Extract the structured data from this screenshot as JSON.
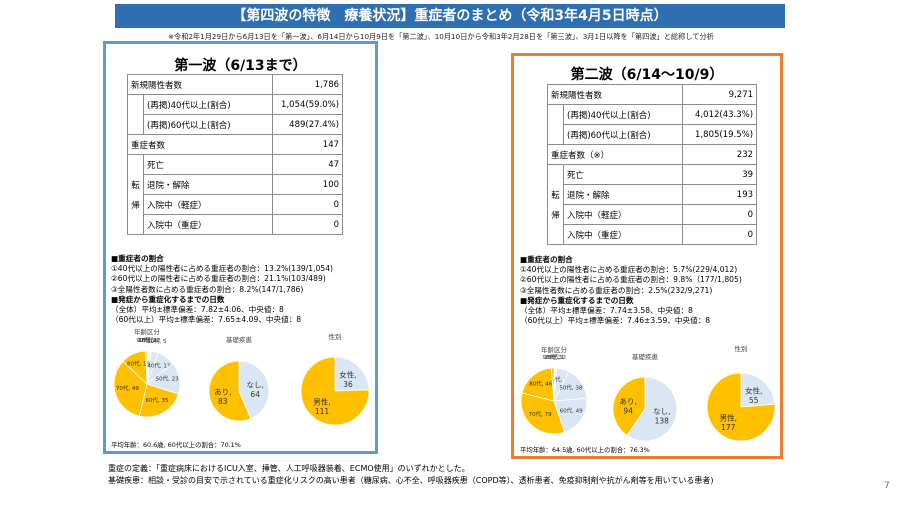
{
  "header": {
    "title": "【第四波の特徴　療養状況】重症者のまとめ（令和3年4月5日時点）",
    "note": "※令和2年1月29日から6月13日を「第一波」、6月14日から10月9日を「第二波」、10月10日から令和3年2月28日を「第三波」、3月1日以降を「第四波」と総称して分析"
  },
  "colors": {
    "banner": "#2e6eb3",
    "wave1_border": "#5b9bd5",
    "wave2_border": "#ed7d31",
    "slice_main": "#ffc000",
    "slice_light": "#dae6f4"
  },
  "waves": [
    {
      "title": "第一波（6/13まで）",
      "rows": [
        {
          "label": "新規陽性者数",
          "value": "1,786"
        },
        {
          "label": "(再掲)40代以上(割合)",
          "value": "1,054(59.0%)"
        },
        {
          "label": "(再掲)60代以上(割合)",
          "value": "489(27.4%)"
        },
        {
          "label": "重症者数",
          "value": "147"
        },
        {
          "label": "死亡",
          "value": "47"
        },
        {
          "label": "退院・解除",
          "value": "100"
        },
        {
          "label": "入院中（軽症）",
          "value": "0"
        },
        {
          "label": "入院中（重症）",
          "value": "0"
        }
      ],
      "stats": [
        "■重症者の割合",
        "①40代以上の陽性者に占める重症者の割合：13.2%(139/1,054)",
        "②60代以上の陽性者に占める重症者の割合：21.1%(103/489)",
        "③全陽性者数に占める重症者の割合：8.2%(147/1,786)",
        "■発症から重症化するまでの日数",
        "（全体）平均±標準偏差：7.82±4.06、中央値：8",
        "（60代以上）平均±標準偏差：7.65±4.09、中央値：8"
      ],
      "footnote": "平均年齢：60.6歳, 60代以上の割合：70.1%"
    },
    {
      "title": "第二波（6/14～10/9）",
      "rows": [
        {
          "label": "新規陽性者数",
          "value": "9,271"
        },
        {
          "label": "(再掲)40代以上(割合)",
          "value": "4,012(43.3%)"
        },
        {
          "label": "(再掲)60代以上(割合)",
          "value": "1,805(19.5%)"
        },
        {
          "label": "重症者数（※）",
          "value": "232"
        },
        {
          "label": "死亡",
          "value": "39"
        },
        {
          "label": "退院・解除",
          "value": "193"
        },
        {
          "label": "入院中（軽症）",
          "value": "0"
        },
        {
          "label": "入院中（重症）",
          "value": "0"
        }
      ],
      "stats": [
        "■重症者の割合",
        "①40代以上の陽性者に占める重症者の割合：5.7%(229/4,012)",
        "②60代以上の陽性者に占める重症者の割合：9.8%（177/1,805)",
        "③全陽性者数に占める重症者の割合：2.5%(232/9,271)",
        "■発症から重症化するまでの日数",
        "（全体）平均±標準偏差：7.74±3.58、中央値：8",
        "（60代以上）平均±標準偏差：7.46±3.59、中央値：8"
      ],
      "footnote": "平均年齢：64.5歳, 60代以上の割合：76.3%"
    }
  ],
  "side_label": [
    "転",
    "帰"
  ],
  "chart_data": [
    {
      "type": "pie",
      "title": "年齢区分",
      "wave": "第一波",
      "slices": [
        {
          "label": "10代",
          "value": 1
        },
        {
          "label": "20代",
          "value": 2
        },
        {
          "label": "30代",
          "value": 5
        },
        {
          "label": "40代",
          "value": 13
        },
        {
          "label": "50代",
          "value": 23
        },
        {
          "label": "60代",
          "value": 35
        },
        {
          "label": "70代",
          "value": 49
        },
        {
          "label": "80代",
          "value": 18
        },
        {
          "label": "90代",
          "value": 1
        }
      ]
    },
    {
      "type": "pie",
      "title": "基礎疾患",
      "wave": "第一波",
      "slices": [
        {
          "label": "あり",
          "value": 83
        },
        {
          "label": "なし",
          "value": 64
        }
      ]
    },
    {
      "type": "pie",
      "title": "性別",
      "wave": "第一波",
      "slices": [
        {
          "label": "男性",
          "value": 111
        },
        {
          "label": "女性",
          "value": 36
        }
      ]
    },
    {
      "type": "pie",
      "title": "年齢区分",
      "wave": "第二波",
      "slices": [
        {
          "label": "20代",
          "value": 1
        },
        {
          "label": "30代",
          "value": 2
        },
        {
          "label": "40代",
          "value": 14
        },
        {
          "label": "50代",
          "value": 38
        },
        {
          "label": "60代",
          "value": 49
        },
        {
          "label": "70代",
          "value": 79
        },
        {
          "label": "80代",
          "value": 46
        },
        {
          "label": "90代",
          "value": 3
        }
      ]
    },
    {
      "type": "pie",
      "title": "基礎疾患",
      "wave": "第二波",
      "slices": [
        {
          "label": "あり",
          "value": 94
        },
        {
          "label": "なし",
          "value": 138
        }
      ]
    },
    {
      "type": "pie",
      "title": "性別",
      "wave": "第二波",
      "slices": [
        {
          "label": "男性",
          "value": 177
        },
        {
          "label": "女性",
          "value": 55
        }
      ]
    }
  ],
  "footer": {
    "definition": "重症の定義：「重症病床におけるICU入室、挿管、人工呼吸器装着、ECMO使用」のいずれかとした。",
    "disease": "基礎疾患：相談・受診の目安で示されている重症化リスクの高い患者（糖尿病、心不全、呼吸器疾患（COPD等）、透析患者、免疫抑制剤や抗がん剤等を用いている患者)",
    "page": "7"
  }
}
